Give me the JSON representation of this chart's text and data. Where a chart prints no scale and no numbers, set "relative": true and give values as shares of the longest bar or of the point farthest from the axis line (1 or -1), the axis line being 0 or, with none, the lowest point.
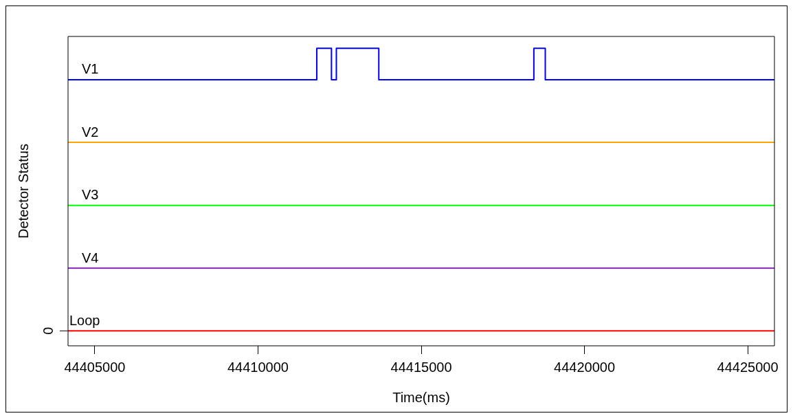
{
  "chart_data": {
    "type": "step",
    "xlabel": "Time(ms)",
    "ylabel": "Detector Status",
    "relative": true,
    "xlim": [
      44404180,
      44425820
    ],
    "xticks": [
      44405000,
      44410000,
      44415000,
      44420000,
      44425000
    ],
    "series": [
      {
        "name": "V1",
        "color": "#0000ff",
        "x": [
          44404180,
          44411800,
          44412250,
          44412400,
          44413700,
          44418450,
          44418800,
          44425820
        ],
        "values": [
          0.889,
          1,
          0.889,
          1,
          0.889,
          1,
          0.889,
          0.889
        ]
      },
      {
        "name": "V2",
        "color": "#ffa500",
        "x": [
          44404180,
          44425820
        ],
        "values": [
          0.667,
          0.667
        ]
      },
      {
        "name": "V3",
        "color": "#00ff00",
        "x": [
          44404180,
          44425820
        ],
        "values": [
          0.444,
          0.444
        ]
      },
      {
        "name": "V4",
        "color": "#a020f0",
        "x": [
          44404180,
          44425820
        ],
        "values": [
          0.222,
          0.222
        ]
      },
      {
        "name": "Loop",
        "color": "#ff0000",
        "x": [
          44404180,
          44425820
        ],
        "values": [
          0,
          0
        ]
      }
    ],
    "annotations": [
      "0"
    ],
    "grid": false,
    "legend": false
  }
}
